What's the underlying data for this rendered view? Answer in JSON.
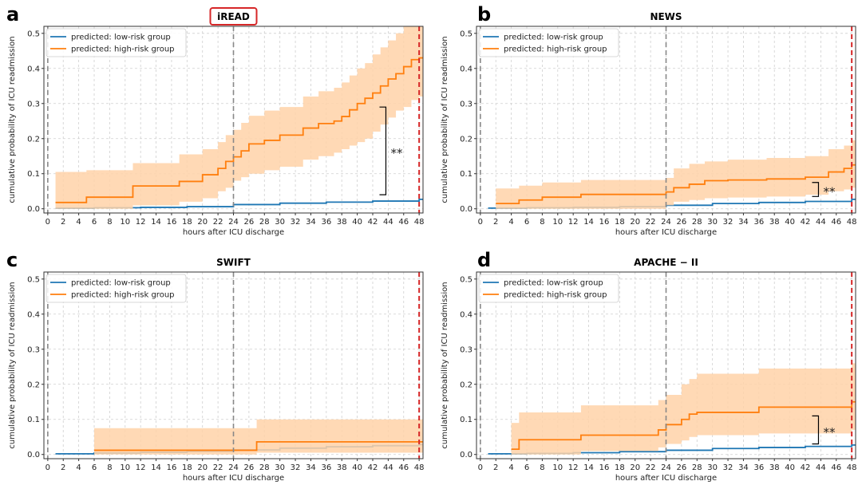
{
  "colors": {
    "low": "#1f77b4",
    "high": "#ff7f0e",
    "band": "#ffd2a8",
    "red_line": "#d62728",
    "gray_line": "#888888",
    "title_box": "#d62728"
  },
  "x_axis_label": "hours after ICU discharge",
  "y_axis_label": "cumulative probability of ICU readmission",
  "chart_data": [
    {
      "type": "line",
      "panel": "a",
      "title": "iREAD",
      "title_boxed": true,
      "xlim": [
        -0.5,
        48.5
      ],
      "ylim": [
        -0.012,
        0.52
      ],
      "xticks": [
        0,
        2,
        4,
        6,
        8,
        10,
        12,
        14,
        16,
        18,
        20,
        22,
        24,
        26,
        28,
        30,
        32,
        34,
        36,
        38,
        40,
        42,
        44,
        46,
        48
      ],
      "yticks": [
        0.0,
        0.1,
        0.2,
        0.3,
        0.4,
        0.5
      ],
      "grid": true,
      "legend_position": "top-left",
      "vlines_gray": [
        0,
        24
      ],
      "vline_red": 48,
      "significance": {
        "label": "**",
        "x": 43.7,
        "y_low": 0.04,
        "y_high": 0.29
      },
      "series": [
        {
          "name": "predicted: low-risk group",
          "x": [
            1,
            6,
            12,
            18,
            24,
            30,
            36,
            42,
            48
          ],
          "values": [
            0.002,
            0.003,
            0.004,
            0.006,
            0.012,
            0.016,
            0.019,
            0.022,
            0.027
          ]
        },
        {
          "name": "predicted: high-risk group",
          "x": [
            1,
            5,
            11,
            17,
            20,
            22,
            23,
            24,
            25,
            26,
            28,
            30,
            33,
            35,
            37,
            38,
            39,
            40,
            41,
            42,
            43,
            44,
            45,
            46,
            47,
            48
          ],
          "values": [
            0.018,
            0.033,
            0.065,
            0.078,
            0.097,
            0.115,
            0.135,
            0.148,
            0.165,
            0.185,
            0.195,
            0.21,
            0.23,
            0.243,
            0.25,
            0.263,
            0.282,
            0.3,
            0.315,
            0.33,
            0.35,
            0.37,
            0.385,
            0.405,
            0.425,
            0.43
          ],
          "band_low": [
            0,
            0,
            0.01,
            0.02,
            0.03,
            0.05,
            0.06,
            0.08,
            0.09,
            0.1,
            0.11,
            0.12,
            0.14,
            0.15,
            0.16,
            0.17,
            0.18,
            0.19,
            0.2,
            0.22,
            0.24,
            0.26,
            0.28,
            0.29,
            0.31,
            0.32
          ],
          "band_high": [
            0.105,
            0.11,
            0.13,
            0.155,
            0.17,
            0.19,
            0.21,
            0.225,
            0.245,
            0.265,
            0.28,
            0.29,
            0.32,
            0.335,
            0.345,
            0.36,
            0.38,
            0.4,
            0.415,
            0.44,
            0.46,
            0.48,
            0.5,
            0.52,
            0.52,
            0.52
          ]
        }
      ]
    },
    {
      "type": "line",
      "panel": "b",
      "title": "NEWS",
      "title_boxed": false,
      "xlim": [
        -0.5,
        48.5
      ],
      "ylim": [
        -0.012,
        0.52
      ],
      "xticks": [
        0,
        2,
        4,
        6,
        8,
        10,
        12,
        14,
        16,
        18,
        20,
        22,
        24,
        26,
        28,
        30,
        32,
        34,
        36,
        38,
        40,
        42,
        44,
        46,
        48
      ],
      "yticks": [
        0.0,
        0.1,
        0.2,
        0.3,
        0.4,
        0.5
      ],
      "grid": true,
      "legend_position": "top-left",
      "vlines_gray": [
        0,
        24
      ],
      "vline_red": 48,
      "significance": {
        "label": "**",
        "x": 43.7,
        "y_low": 0.035,
        "y_high": 0.075
      },
      "series": [
        {
          "name": "predicted: low-risk group",
          "x": [
            1,
            6,
            12,
            18,
            24,
            30,
            36,
            42,
            48
          ],
          "values": [
            0.002,
            0.003,
            0.004,
            0.006,
            0.01,
            0.015,
            0.018,
            0.021,
            0.027
          ]
        },
        {
          "name": "predicted: high-risk group",
          "x": [
            2,
            5,
            8,
            13,
            24,
            25,
            27,
            29,
            32,
            37,
            42,
            45,
            47,
            48
          ],
          "values": [
            0.015,
            0.025,
            0.033,
            0.041,
            0.048,
            0.06,
            0.07,
            0.08,
            0.082,
            0.085,
            0.09,
            0.105,
            0.115,
            0.125
          ],
          "band_low": [
            0,
            0,
            0,
            0,
            0.01,
            0.02,
            0.025,
            0.03,
            0.032,
            0.035,
            0.04,
            0.05,
            0.055,
            0.06
          ],
          "band_high": [
            0.058,
            0.066,
            0.075,
            0.082,
            0.088,
            0.115,
            0.128,
            0.135,
            0.14,
            0.145,
            0.15,
            0.17,
            0.18,
            0.195
          ]
        }
      ]
    },
    {
      "type": "line",
      "panel": "c",
      "title": "SWIFT",
      "title_boxed": false,
      "xlim": [
        -0.5,
        48.5
      ],
      "ylim": [
        -0.012,
        0.52
      ],
      "xticks": [
        0,
        2,
        4,
        6,
        8,
        10,
        12,
        14,
        16,
        18,
        20,
        22,
        24,
        26,
        28,
        30,
        32,
        34,
        36,
        38,
        40,
        42,
        44,
        46,
        48
      ],
      "yticks": [
        0.0,
        0.1,
        0.2,
        0.3,
        0.4,
        0.5
      ],
      "grid": true,
      "legend_position": "top-left",
      "vlines_gray": [
        0,
        24
      ],
      "vline_red": 48,
      "series": [
        {
          "name": "predicted: low-risk group",
          "x": [
            1,
            6,
            12,
            18,
            24,
            30,
            36,
            42,
            48
          ],
          "values": [
            0.002,
            0.004,
            0.006,
            0.009,
            0.013,
            0.018,
            0.022,
            0.025,
            0.028
          ]
        },
        {
          "name": "predicted: high-risk group",
          "x": [
            6,
            27,
            48
          ],
          "values": [
            0.012,
            0.036,
            0.036
          ],
          "band_low": [
            0,
            0.005,
            0.005
          ],
          "band_high": [
            0.075,
            0.1,
            0.1
          ]
        }
      ]
    },
    {
      "type": "line",
      "panel": "d",
      "title": "APACHE − II",
      "title_boxed": false,
      "xlim": [
        -0.5,
        48.5
      ],
      "ylim": [
        -0.012,
        0.52
      ],
      "xticks": [
        0,
        2,
        4,
        6,
        8,
        10,
        12,
        14,
        16,
        18,
        20,
        22,
        24,
        26,
        28,
        30,
        32,
        34,
        36,
        38,
        40,
        42,
        44,
        46,
        48
      ],
      "yticks": [
        0.0,
        0.1,
        0.2,
        0.3,
        0.4,
        0.5
      ],
      "grid": true,
      "legend_position": "top-left",
      "vlines_gray": [
        0,
        24
      ],
      "vline_red": 48,
      "significance": {
        "label": "**",
        "x": 43.7,
        "y_low": 0.03,
        "y_high": 0.11
      },
      "series": [
        {
          "name": "predicted: low-risk group",
          "x": [
            1,
            6,
            12,
            18,
            24,
            30,
            36,
            42,
            48
          ],
          "values": [
            0.002,
            0.003,
            0.005,
            0.008,
            0.012,
            0.017,
            0.02,
            0.023,
            0.027
          ]
        },
        {
          "name": "predicted: high-risk group",
          "x": [
            4,
            5,
            13,
            23,
            24,
            26,
            27,
            28,
            36,
            48
          ],
          "values": [
            0.015,
            0.042,
            0.055,
            0.07,
            0.085,
            0.1,
            0.115,
            0.12,
            0.135,
            0.15
          ],
          "band_low": [
            0,
            0,
            0.01,
            0.02,
            0.03,
            0.04,
            0.05,
            0.055,
            0.06,
            0.07
          ],
          "band_high": [
            0.09,
            0.12,
            0.14,
            0.155,
            0.17,
            0.2,
            0.215,
            0.23,
            0.245,
            0.26
          ]
        }
      ]
    }
  ]
}
